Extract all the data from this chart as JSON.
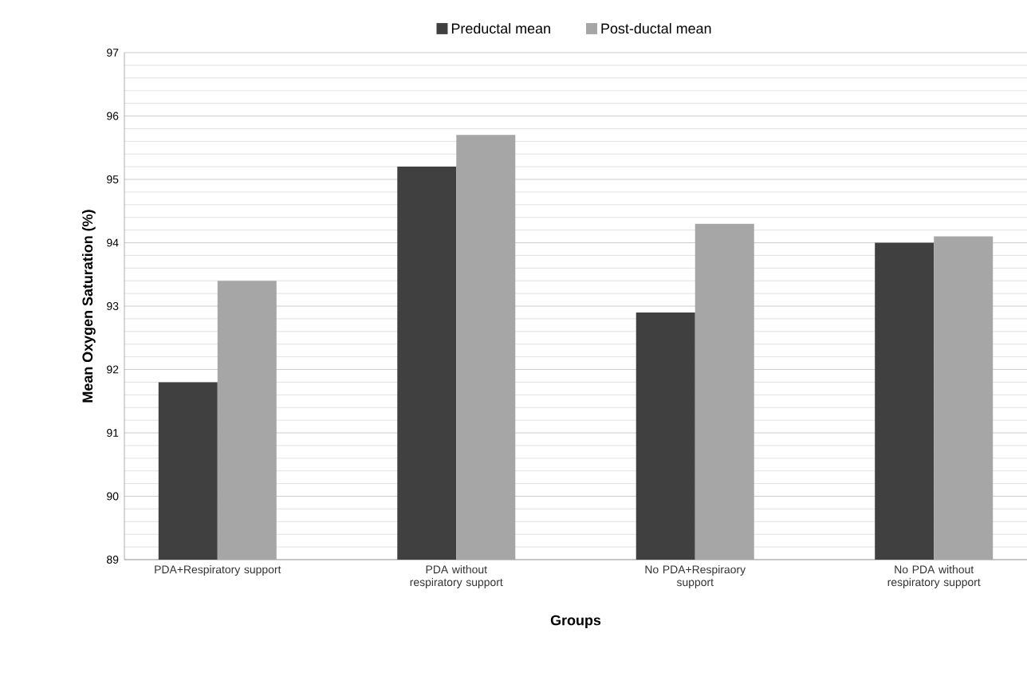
{
  "chart_data": {
    "type": "bar",
    "xlabel": "Groups",
    "ylabel": "Mean Oxygen Saturation (%)",
    "categories": [
      "PDA+Respiratory support",
      "PDA without respiratory support",
      "No PDA+Respiraory support",
      "No PDA without respiratory support"
    ],
    "series": [
      {
        "name": "Preductal mean",
        "color": "#404040",
        "values": [
          91.8,
          95.2,
          92.9,
          94.0
        ]
      },
      {
        "name": "Post-ductal mean",
        "color": "#a6a6a6",
        "values": [
          93.4,
          95.7,
          94.3,
          94.1
        ]
      }
    ],
    "ylim": [
      89,
      97
    ],
    "yticks": [
      89,
      90,
      91,
      92,
      93,
      94,
      95,
      96,
      97
    ],
    "grid": "y",
    "legend": "top"
  }
}
